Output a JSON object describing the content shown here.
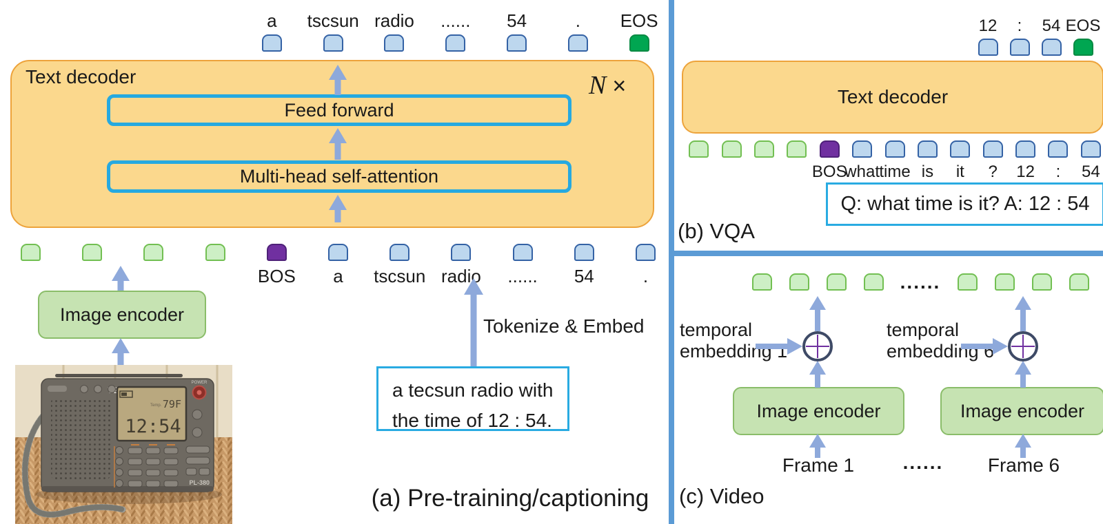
{
  "colors": {
    "token_blue": "#BDD7EE",
    "token_blue_border": "#3462A5",
    "token_green": "#CDEFC5",
    "token_green_border": "#72BF52",
    "token_purple": "#7030A0",
    "token_eos_green": "#00A651",
    "decoder_fill": "#FBD88D",
    "decoder_border": "#EDA33B",
    "inner_box_border": "#26A9E0",
    "encoder_fill": "#C6E3B2",
    "arrow": "#8EA9DB",
    "panel_divider": "#5B9BD5",
    "operator_purple": "#7030A0"
  },
  "panel_a": {
    "decoder_label": "Text decoder",
    "repeat_n": "N",
    "repeat_times": "×",
    "feed_forward": "Feed forward",
    "attention": "Multi-head self-attention",
    "encoder_label": "Image encoder",
    "tokenize_label": "Tokenize & Embed",
    "caption_line1": "a tecsun radio with",
    "caption_line2": "the time of 12 : 54.",
    "title": "(a) Pre-training/captioning",
    "output_tokens": [
      {
        "type": "blue",
        "label": "a"
      },
      {
        "type": "blue",
        "label": "tscsun"
      },
      {
        "type": "blue",
        "label": "radio"
      },
      {
        "type": "blue",
        "label": "......"
      },
      {
        "type": "blue",
        "label": "54"
      },
      {
        "type": "blue",
        "label": "."
      },
      {
        "type": "eos",
        "label": "EOS"
      }
    ],
    "input_tokens": [
      {
        "type": "green",
        "label": ""
      },
      {
        "type": "green",
        "label": ""
      },
      {
        "type": "green",
        "label": ""
      },
      {
        "type": "green",
        "label": ""
      },
      {
        "type": "purple",
        "label": "BOS"
      },
      {
        "type": "blue",
        "label": "a"
      },
      {
        "type": "blue",
        "label": "tscsun"
      },
      {
        "type": "blue",
        "label": "radio"
      },
      {
        "type": "blue",
        "label": "......"
      },
      {
        "type": "blue",
        "label": "54"
      },
      {
        "type": "blue",
        "label": "."
      }
    ]
  },
  "panel_b": {
    "title": "(b) VQA",
    "decoder_label": "Text decoder",
    "qa_text": "Q: what time is it? A: 12 : 54",
    "output_tokens": [
      {
        "type": "blue",
        "label": "12"
      },
      {
        "type": "blue",
        "label": ":"
      },
      {
        "type": "blue",
        "label": "54"
      },
      {
        "type": "eos",
        "label": "EOS"
      }
    ],
    "input_tokens": [
      {
        "type": "green",
        "label": ""
      },
      {
        "type": "green",
        "label": ""
      },
      {
        "type": "green",
        "label": ""
      },
      {
        "type": "green",
        "label": ""
      },
      {
        "type": "purple",
        "label": "BOS"
      },
      {
        "type": "blue",
        "label": "what"
      },
      {
        "type": "blue",
        "label": "time"
      },
      {
        "type": "blue",
        "label": "is"
      },
      {
        "type": "blue",
        "label": "it"
      },
      {
        "type": "blue",
        "label": "?"
      },
      {
        "type": "blue",
        "label": "12"
      },
      {
        "type": "blue",
        "label": ":"
      },
      {
        "type": "blue",
        "label": "54"
      }
    ]
  },
  "panel_c": {
    "title": "(c) Video",
    "temporal1_line1": "temporal",
    "temporal1_line2": "embedding 1",
    "temporal6_line1": "temporal",
    "temporal6_line2": "embedding 6",
    "encoder1_label": "Image encoder",
    "encoder2_label": "Image encoder",
    "frame1": "Frame 1",
    "frames_dots": "......",
    "frame6": "Frame 6",
    "tokens": [
      {
        "type": "green",
        "label": ""
      },
      {
        "type": "green",
        "label": ""
      },
      {
        "type": "green",
        "label": ""
      },
      {
        "type": "green",
        "label": ""
      },
      {
        "type": "dots",
        "label": "......"
      },
      {
        "type": "green",
        "label": ""
      },
      {
        "type": "green",
        "label": ""
      },
      {
        "type": "green",
        "label": ""
      },
      {
        "type": "green",
        "label": ""
      }
    ]
  },
  "radio": {
    "brand": "TECSUN",
    "model": "PL-380",
    "time": "12:54",
    "temp": "79F",
    "temp_label": "Temp.",
    "power": "POWER"
  }
}
